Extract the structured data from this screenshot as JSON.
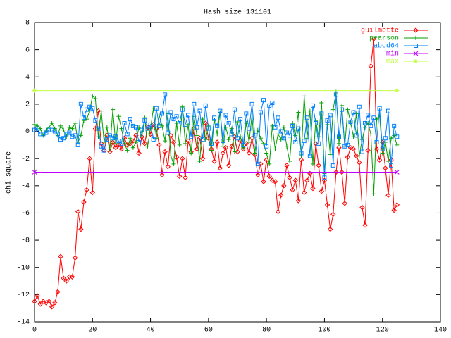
{
  "chart_data": {
    "type": "line",
    "title": "Hash size 131101",
    "y_label": "chi-square",
    "x": [
      0,
      1,
      2,
      3,
      4,
      5,
      6,
      7,
      8,
      9,
      10,
      11,
      12,
      13,
      14,
      15,
      16,
      17,
      18,
      19,
      20,
      21,
      22,
      23,
      24,
      25,
      26,
      27,
      28,
      29,
      30,
      31,
      32,
      33,
      34,
      35,
      36,
      37,
      38,
      39,
      40,
      41,
      42,
      43,
      44,
      45,
      46,
      47,
      48,
      49,
      50,
      51,
      52,
      53,
      54,
      55,
      56,
      57,
      58,
      59,
      60,
      61,
      62,
      63,
      64,
      65,
      66,
      67,
      68,
      69,
      70,
      71,
      72,
      73,
      74,
      75,
      76,
      77,
      78,
      79,
      80,
      81,
      82,
      83,
      84,
      85,
      86,
      87,
      88,
      89,
      90,
      91,
      92,
      93,
      94,
      95,
      96,
      97,
      98,
      99,
      100,
      101,
      102,
      103,
      104,
      105,
      106,
      107,
      108,
      109,
      110,
      111,
      112,
      113,
      114,
      115,
      116,
      117,
      118,
      119,
      120,
      121,
      122,
      123,
      124,
      125
    ],
    "series": [
      {
        "name": "guilmette",
        "color": "#ff0000",
        "values": [
          -12.5,
          -12.1,
          -12.7,
          -12.5,
          -12.6,
          -12.5,
          -12.9,
          -12.6,
          -11.8,
          -9.2,
          -10.8,
          -11.0,
          -10.7,
          -10.7,
          -9.3,
          -5.9,
          -7.2,
          -5.2,
          -4.3,
          -2.0,
          -4.5,
          0.2,
          1.5,
          -0.9,
          -1.4,
          -0.3,
          -1.5,
          -0.8,
          -1.2,
          -1.0,
          -1.3,
          -0.5,
          -1.0,
          -0.9,
          -0.7,
          -0.3,
          -1.6,
          -0.4,
          -0.9,
          0.3,
          -0.2,
          0.5,
          0.2,
          -1.0,
          -3.2,
          -1.5,
          -2.6,
          -0.3,
          -0.8,
          -1.9,
          -3.3,
          -2.0,
          -3.4,
          -0.7,
          -1.5,
          0.2,
          -1.3,
          -0.5,
          -2.0,
          0.6,
          -0.5,
          -1.3,
          -2.2,
          -0.8,
          -2.7,
          -1.6,
          -1.2,
          -2.5,
          -1.1,
          -0.4,
          -1.5,
          -0.7,
          -1.3,
          -0.9,
          -1.6,
          -0.5,
          -1.7,
          -3.2,
          -2.4,
          -3.7,
          -2.1,
          -3.3,
          -3.6,
          -3.7,
          -5.9,
          -4.7,
          -4.0,
          -2.5,
          -3.4,
          -4.3,
          -3.6,
          -5.1,
          -2.1,
          -4.5,
          -3.6,
          -3.1,
          -4.2,
          -0.9,
          -2.5,
          -4.4,
          -3.6,
          -5.4,
          -7.2,
          -6.1,
          -3.0,
          -1.2,
          -3.0,
          -5.3,
          -1.9,
          -1.2,
          -1.3,
          -1.8,
          -2.3,
          -5.6,
          -6.9,
          -1.4,
          4.8,
          6.8,
          -1.3,
          -2.1,
          -0.8,
          -2.7,
          -4.7,
          -2.1,
          -5.8,
          -5.4
        ]
      },
      {
        "name": "pearson",
        "color": "#00a000",
        "values": [
          0.5,
          0.4,
          0.2,
          -0.3,
          0.1,
          0.3,
          0.6,
          0.2,
          -0.3,
          0.4,
          0.1,
          -0.4,
          0.3,
          0.2,
          0.6,
          -0.8,
          -0.3,
          0.8,
          0.9,
          1.5,
          2.6,
          2.4,
          -0.4,
          1.5,
          -0.8,
          0.3,
          -1.3,
          1.6,
          -0.9,
          1.1,
          0.2,
          -0.9,
          -1.4,
          -0.5,
          -1.2,
          -0.8,
          0.3,
          -0.4,
          1.0,
          -1.1,
          0.2,
          1.7,
          -0.5,
          1.2,
          0.4,
          -0.7,
          1.3,
          -1.8,
          -2.4,
          0.6,
          -1.0,
          1.8,
          -0.9,
          0.5,
          -1.6,
          1.1,
          -0.3,
          -2.2,
          0.9,
          -0.6,
          0.4,
          -1.4,
          0.8,
          -0.2,
          1.4,
          -1.1,
          0.3,
          -0.6,
          0.2,
          -1.5,
          0.7,
          -0.4,
          -1.2,
          0.6,
          -0.8,
          1.2,
          -1.6,
          0.1,
          -0.5,
          -0.9,
          -1.6,
          -2.4,
          0.4,
          -1.3,
          -0.2,
          -0.6,
          0.3,
          -1.1,
          -2.2,
          0.6,
          -0.3,
          1.4,
          -1.8,
          2.6,
          -0.5,
          1.5,
          -2.4,
          0.8,
          -0.4,
          2.1,
          -3.1,
          0.5,
          -1.7,
          1.6,
          2.9,
          -0.9,
          1.9,
          -1.1,
          1.6,
          0.7,
          -0.4,
          1.3,
          -1.8,
          -0.6,
          0.3,
          0.6,
          -0.2,
          -4.6,
          0.9,
          1.2,
          -1.6,
          -0.8,
          -2.2,
          -0.5,
          -0.3,
          -1.0
        ]
      },
      {
        "name": "abcd64",
        "color": "#0080ff",
        "values": [
          0.1,
          0.2,
          -0.2,
          -0.2,
          -0.1,
          0.1,
          0.1,
          0.0,
          -0.2,
          -0.6,
          -0.5,
          -0.2,
          -0.1,
          -0.4,
          -0.3,
          -1.0,
          2.0,
          1.0,
          1.6,
          1.8,
          1.7,
          0.8,
          0.2,
          -1.1,
          -1.4,
          -0.6,
          -0.3,
          -0.5,
          -0.4,
          -0.7,
          -0.9,
          0.6,
          -0.2,
          0.9,
          0.4,
          0.3,
          -0.8,
          0.1,
          0.8,
          0.2,
          0.5,
          -0.6,
          1.7,
          0.4,
          1.3,
          2.7,
          -0.1,
          1.4,
          0.9,
          1.1,
          0.6,
          1.6,
          0.5,
          1.2,
          -0.4,
          2.0,
          0.3,
          1.5,
          -0.6,
          1.9,
          0.2,
          -0.9,
          1.0,
          0.4,
          1.5,
          -0.7,
          1.2,
          0.6,
          -0.2,
          1.6,
          -0.5,
          0.9,
          -1.0,
          1.3,
          0.2,
          2.0,
          -0.3,
          -2.4,
          1.4,
          2.3,
          -1.1,
          1.9,
          2.1,
          0.3,
          1.0,
          0.0,
          -0.5,
          -0.1,
          -0.3,
          0.4,
          -0.8,
          0.2,
          -1.6,
          -0.7,
          1.0,
          -1.8,
          1.9,
          0.6,
          -0.9,
          1.3,
          -3.4,
          0.8,
          1.2,
          -2.5,
          2.7,
          -0.4,
          1.6,
          -1.1,
          -1.0,
          0.7,
          1.4,
          -0.3,
          1.8,
          -1.5,
          0.6,
          1.2,
          0.4,
          1.0,
          -0.8,
          1.7,
          -1.3,
          -0.5,
          1.5,
          -2.5,
          0.4,
          -0.4
        ]
      },
      {
        "name": "min",
        "color": "#c000ff",
        "x": [
          0,
          125
        ],
        "values": [
          -3,
          -3
        ]
      },
      {
        "name": "max",
        "color": "#c0ff40",
        "x": [
          0,
          125
        ],
        "values": [
          3,
          3
        ]
      }
    ],
    "xlim": [
      0,
      140
    ],
    "xticks": [
      0,
      20,
      40,
      60,
      80,
      100,
      120,
      140
    ],
    "ylim": [
      -14,
      8
    ],
    "yticks": [
      -14,
      -12,
      -10,
      -8,
      -6,
      -4,
      -2,
      0,
      2,
      4,
      6,
      8
    ],
    "grid": false,
    "legend": "top-right"
  }
}
